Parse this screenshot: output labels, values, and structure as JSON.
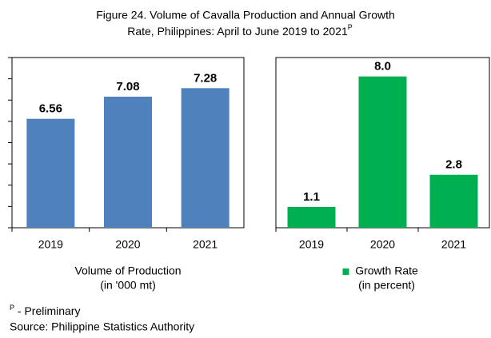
{
  "title": [
    "Figure 24. Volume of Cavalla Production and  Annual Growth",
    "Rate, Philippines: April to June 2019 to 2021"
  ],
  "title_superscript": "P",
  "chart_data": [
    {
      "type": "bar",
      "categories": [
        "2019",
        "2020",
        "2021"
      ],
      "values": [
        6.56,
        7.08,
        7.28
      ],
      "color": "#4f81bd",
      "ylim": [
        4,
        8
      ],
      "yticks": [
        4,
        4.5,
        5,
        5.5,
        6,
        6.5,
        7,
        7.5,
        8
      ],
      "label": [
        "Volume of Production",
        "(in '000 mt)"
      ],
      "legend_marker": false
    },
    {
      "type": "bar",
      "categories": [
        "2019",
        "2020",
        "2021"
      ],
      "values": [
        1.1,
        8.0,
        2.8
      ],
      "value_labels": [
        "1.1",
        "8.0",
        "2.8"
      ],
      "color": "#00b050",
      "ylim": [
        0,
        9
      ],
      "label": [
        "Growth Rate",
        "(in percent)"
      ],
      "legend_marker": true
    }
  ],
  "notes": {
    "mark": "P",
    "text": " - Preliminary",
    "source": "Source: Philippine Statistics Authority"
  }
}
